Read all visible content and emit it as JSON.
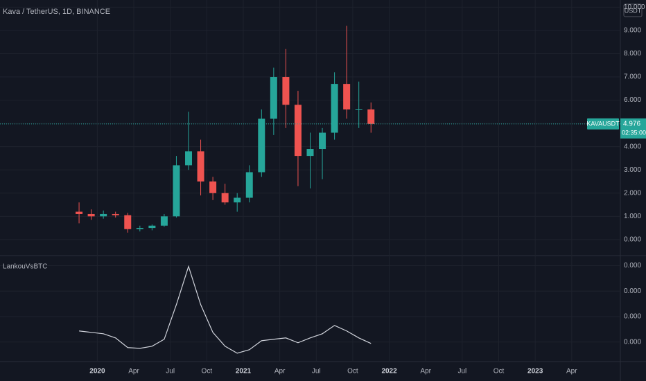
{
  "chart_data": [
    {
      "type": "candlestick",
      "title": "Kava / TetherUS, 1D, BINANCE",
      "currency": "USDT",
      "x": [
        "2019-11",
        "2019-12",
        "2020-01",
        "2020-02",
        "2020-03",
        "2020-04",
        "2020-05",
        "2020-06",
        "2020-07",
        "2020-08",
        "2020-09",
        "2020-10",
        "2020-11",
        "2020-12",
        "2021-01",
        "2021-02",
        "2021-03",
        "2021-04",
        "2021-05",
        "2021-06",
        "2021-07",
        "2021-08",
        "2021-09",
        "2021-10",
        "2021-11"
      ],
      "open": [
        1.2,
        1.1,
        1.0,
        1.1,
        1.05,
        0.45,
        0.5,
        0.6,
        1.0,
        3.2,
        3.8,
        2.5,
        2.0,
        1.6,
        1.8,
        2.9,
        5.2,
        7.0,
        5.8,
        3.6,
        3.9,
        4.6,
        6.7,
        5.6,
        5.6
      ],
      "high": [
        1.6,
        1.3,
        1.25,
        1.2,
        1.15,
        0.6,
        0.65,
        1.1,
        3.6,
        5.5,
        4.3,
        2.7,
        2.4,
        2.0,
        3.2,
        5.6,
        7.4,
        8.2,
        6.4,
        4.6,
        4.8,
        7.2,
        9.2,
        6.8,
        5.9
      ],
      "low": [
        0.7,
        0.85,
        0.9,
        0.95,
        0.3,
        0.35,
        0.4,
        0.55,
        0.95,
        3.0,
        1.9,
        1.7,
        1.5,
        1.2,
        1.6,
        2.7,
        4.5,
        4.8,
        2.3,
        2.2,
        2.6,
        4.3,
        5.2,
        4.8,
        4.6
      ],
      "close": [
        1.1,
        1.0,
        1.1,
        1.05,
        0.45,
        0.5,
        0.6,
        1.0,
        3.2,
        3.8,
        2.5,
        2.0,
        1.6,
        1.8,
        2.9,
        5.2,
        7.0,
        5.8,
        3.6,
        3.9,
        4.6,
        6.7,
        5.6,
        5.6,
        4.976
      ],
      "up_color": "#26a69a",
      "down_color": "#ef5350",
      "last_price": {
        "symbol": "KAVAUSDT",
        "value": 4.976,
        "countdown": "02:35:00"
      },
      "xlim": [
        "2019-05",
        "2023-08"
      ],
      "xticks": [
        {
          "value": "2020-01",
          "label": "2020"
        },
        {
          "value": "2020-04",
          "label": "Apr"
        },
        {
          "value": "2020-07",
          "label": "Jul"
        },
        {
          "value": "2020-10",
          "label": "Oct"
        },
        {
          "value": "2021-01",
          "label": "2021"
        },
        {
          "value": "2021-04",
          "label": "Apr"
        },
        {
          "value": "2021-07",
          "label": "Jul"
        },
        {
          "value": "2021-10",
          "label": "Oct"
        },
        {
          "value": "2022-01",
          "label": "2022"
        },
        {
          "value": "2022-04",
          "label": "Apr"
        },
        {
          "value": "2022-07",
          "label": "Jul"
        },
        {
          "value": "2022-10",
          "label": "Oct"
        },
        {
          "value": "2023-01",
          "label": "2023"
        },
        {
          "value": "2023-04",
          "label": "Apr"
        }
      ],
      "ylim": [
        -0.66,
        10.31
      ],
      "yticks": [
        {
          "value": 0,
          "label": "0.000"
        },
        {
          "value": 1,
          "label": "1.000"
        },
        {
          "value": 2,
          "label": "2.000"
        },
        {
          "value": 3,
          "label": "3.000"
        },
        {
          "value": 4,
          "label": "4.000"
        },
        {
          "value": 5,
          "label": "5.000"
        },
        {
          "value": 6,
          "label": "6.000"
        },
        {
          "value": 7,
          "label": "7.000"
        },
        {
          "value": 8,
          "label": "8.000"
        },
        {
          "value": 9,
          "label": "9.000"
        },
        {
          "value": 10,
          "label": "10.000"
        }
      ],
      "grid": true
    },
    {
      "type": "line",
      "title": "LankouVsBTC",
      "color": "#d1d4dc",
      "x": [
        "2019-11",
        "2019-12",
        "2020-01",
        "2020-02",
        "2020-03",
        "2020-04",
        "2020-05",
        "2020-06",
        "2020-07",
        "2020-08",
        "2020-09",
        "2020-10",
        "2020-11",
        "2020-12",
        "2021-01",
        "2021-02",
        "2021-03",
        "2021-04",
        "2021-05",
        "2021-06",
        "2021-07",
        "2021-08",
        "2021-09",
        "2021-10",
        "2021-11"
      ],
      "values": [
        4.31e-05,
        4.14e-05,
        3.98e-05,
        3.49e-05,
        2.35e-05,
        2.26e-05,
        2.51e-05,
        3.33e-05,
        7.41e-05,
        0.0001191,
        7.41e-05,
        4.14e-05,
        2.51e-05,
        1.69e-05,
        2.1e-05,
        3.16e-05,
        3.33e-05,
        3.49e-05,
        2.92e-05,
        3.49e-05,
        3.98e-05,
        4.96e-05,
        4.31e-05,
        3.49e-05,
        2.84e-05
      ],
      "ylim": [
        7e-06,
        0.000131
      ],
      "yticks": [
        {
          "value": 3e-05,
          "label": "0.000"
        },
        {
          "value": 6e-05,
          "label": "0.000"
        },
        {
          "value": 9e-05,
          "label": "0.000"
        },
        {
          "value": 0.00012,
          "label": "0.000"
        }
      ],
      "grid": true
    }
  ]
}
